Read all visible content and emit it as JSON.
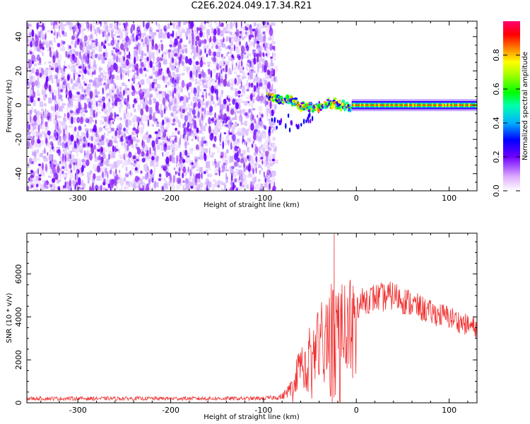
{
  "title": "C2E6.2024.049.17.34.R21",
  "chart_data": [
    {
      "type": "heatmap",
      "xlabel": "Height of straight line (km)",
      "ylabel": "Frequency (Hz)",
      "xlim": [
        -355,
        130
      ],
      "ylim": [
        -50,
        49
      ],
      "xticks": [
        -300,
        -200,
        -100,
        0,
        100
      ],
      "yticks": [
        -40,
        -20,
        0,
        20,
        40
      ],
      "noise_region_x": [
        -355,
        -88
      ],
      "signal_track": {
        "x": [
          -95,
          -85,
          -75,
          -65,
          -55,
          -45,
          -35,
          -25,
          -15,
          -5,
          5,
          20,
          40,
          60,
          80,
          100,
          130
        ],
        "y": [
          5,
          3,
          4,
          1,
          -1,
          -2,
          0,
          1,
          0,
          -1,
          0,
          0,
          0,
          0,
          0,
          0,
          0
        ]
      },
      "colorbar": {
        "label": "Normalized spectral amplitude",
        "range": [
          0,
          1
        ],
        "ticks": [
          "0.0",
          "0.2",
          "0.4",
          "0.6",
          "0.8"
        ]
      }
    },
    {
      "type": "line",
      "xlabel": "Height of straight line (km)",
      "ylabel": "SNR (10 * v/v)",
      "xlim": [
        -355,
        130
      ],
      "ylim": [
        0,
        7900
      ],
      "xticks": [
        -300,
        -200,
        -100,
        0,
        100
      ],
      "yticks": [
        0,
        2000,
        4000,
        6000
      ],
      "series": [
        {
          "color": "#f03030",
          "envelope": {
            "x": [
              -355,
              -100,
              -80,
              -70,
              -65,
              -60,
              -55,
              -50,
              -45,
              -40,
              -35,
              -30,
              -27,
              -25,
              -20,
              -15,
              -10,
              -5,
              0,
              10,
              20,
              30,
              40,
              50,
              60,
              70,
              80,
              90,
              100,
              110,
              120,
              130
            ],
            "y": [
              200,
              200,
              280,
              700,
              1300,
              1900,
              1700,
              2400,
              2600,
              2900,
              3200,
              3400,
              3600,
              3800,
              4000,
              3700,
              3800,
              4300,
              4500,
              4800,
              4900,
              4900,
              5000,
              4800,
              4600,
              4400,
              4200,
              4100,
              4000,
              3800,
              3600,
              3500
            ]
          },
          "spike": {
            "x": -24,
            "y": 7900
          }
        }
      ]
    }
  ]
}
